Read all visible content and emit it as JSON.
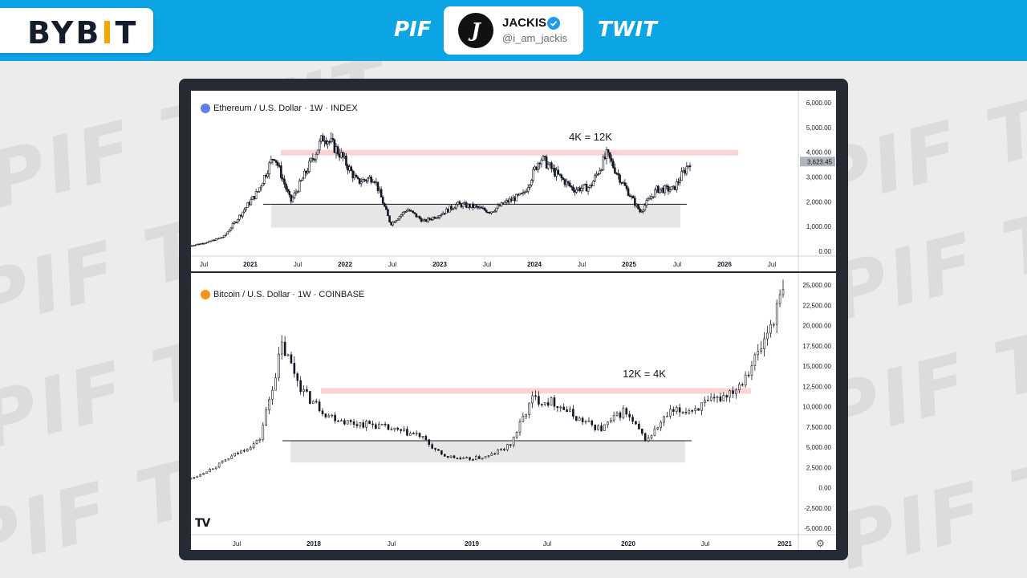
{
  "header": {
    "logo_prefix": "BYB",
    "logo_accent": "I",
    "logo_suffix": "T",
    "left_tag": "PIF",
    "right_tag": "TWIT",
    "profile_name": "JACKIS",
    "profile_handle": "@i_am_jackis",
    "avatar_letter": "J"
  },
  "watermark": {
    "word": "PIF TWIT"
  },
  "colors": {
    "header_bg": "#0ba5e6",
    "frame_bg": "#262a35",
    "candle": "#131722",
    "resistance_band": "#fbd3d3",
    "support_box": "#e6e6e6",
    "eth_icon": "#627eea",
    "btc_icon": "#f7931a",
    "verified": "#1d9bf0"
  },
  "chart_data": [
    {
      "type": "candlestick",
      "title": "Ethereum / U.S. Dollar · 1W · INDEX",
      "annotation": "4K = 12K",
      "last_price_label": "3,623.45",
      "y_ticks": [
        "6,000.00",
        "5,000.00",
        "4,000.00",
        "3,000.00",
        "2,000.00",
        "1,000.00",
        "0.00"
      ],
      "ylim": [
        0,
        6000
      ],
      "x_ticks": [
        "Jul",
        "2021",
        "Jul",
        "2022",
        "Jul",
        "2023",
        "Jul",
        "2024",
        "Jul",
        "2025",
        "Jul",
        "2026",
        "Jul"
      ],
      "resistance_level": 4000,
      "support_level": 1900,
      "support_zone": [
        950,
        1900
      ],
      "x": [
        "2020-06",
        "2020-09",
        "2020-12",
        "2021-02",
        "2021-04",
        "2021-05",
        "2021-07",
        "2021-09",
        "2021-11",
        "2021-12",
        "2022-02",
        "2022-04",
        "2022-06",
        "2022-08",
        "2022-11",
        "2023-01",
        "2023-04",
        "2023-06",
        "2023-09",
        "2023-11",
        "2024-01",
        "2024-03",
        "2024-05",
        "2024-08",
        "2024-10",
        "2024-12",
        "2025-02",
        "2025-04",
        "2025-05",
        "2025-06",
        "2025-07"
      ],
      "values": [
        230,
        370,
        600,
        1500,
        2400,
        3900,
        2000,
        3300,
        4700,
        3900,
        2800,
        3000,
        1100,
        1700,
        1200,
        1500,
        1900,
        1800,
        1600,
        2000,
        2300,
        3800,
        3100,
        2500,
        2600,
        3900,
        2700,
        1600,
        2500,
        2500,
        3623
      ]
    },
    {
      "type": "candlestick",
      "title": "Bitcoin / U.S. Dollar · 1W · COINBASE",
      "annotation": "12K = 4K",
      "y_ticks": [
        "25,000.00",
        "22,500.00",
        "20,000.00",
        "17,500.00",
        "15,000.00",
        "12,500.00",
        "10,000.00",
        "7,500.00",
        "5,000.00",
        "2,500.00",
        "0.00",
        "-2,500.00",
        "-5,000.00"
      ],
      "ylim": [
        -5000,
        26000
      ],
      "x_ticks": [
        "Jul",
        "2018",
        "Jul",
        "2019",
        "Jul",
        "2020",
        "Jul",
        "2021"
      ],
      "resistance_level": 12000,
      "support_level": 5800,
      "support_zone": [
        3100,
        5800
      ],
      "x": [
        "2017-04",
        "2017-06",
        "2017-08",
        "2017-10",
        "2017-12",
        "2018-01",
        "2018-02",
        "2018-03",
        "2018-05",
        "2018-07",
        "2018-09",
        "2018-11",
        "2018-12",
        "2019-02",
        "2019-04",
        "2019-06",
        "2019-08",
        "2019-10",
        "2019-12",
        "2020-02",
        "2020-03",
        "2020-05",
        "2020-07",
        "2020-09",
        "2020-10",
        "2020-11",
        "2020-12"
      ],
      "values": [
        1100,
        2500,
        4200,
        5800,
        17500,
        11500,
        9000,
        8000,
        7800,
        7000,
        6500,
        4000,
        3500,
        3800,
        5200,
        11000,
        10500,
        8500,
        7200,
        9500,
        5800,
        9200,
        9700,
        10700,
        12500,
        17000,
        24000
      ]
    }
  ]
}
